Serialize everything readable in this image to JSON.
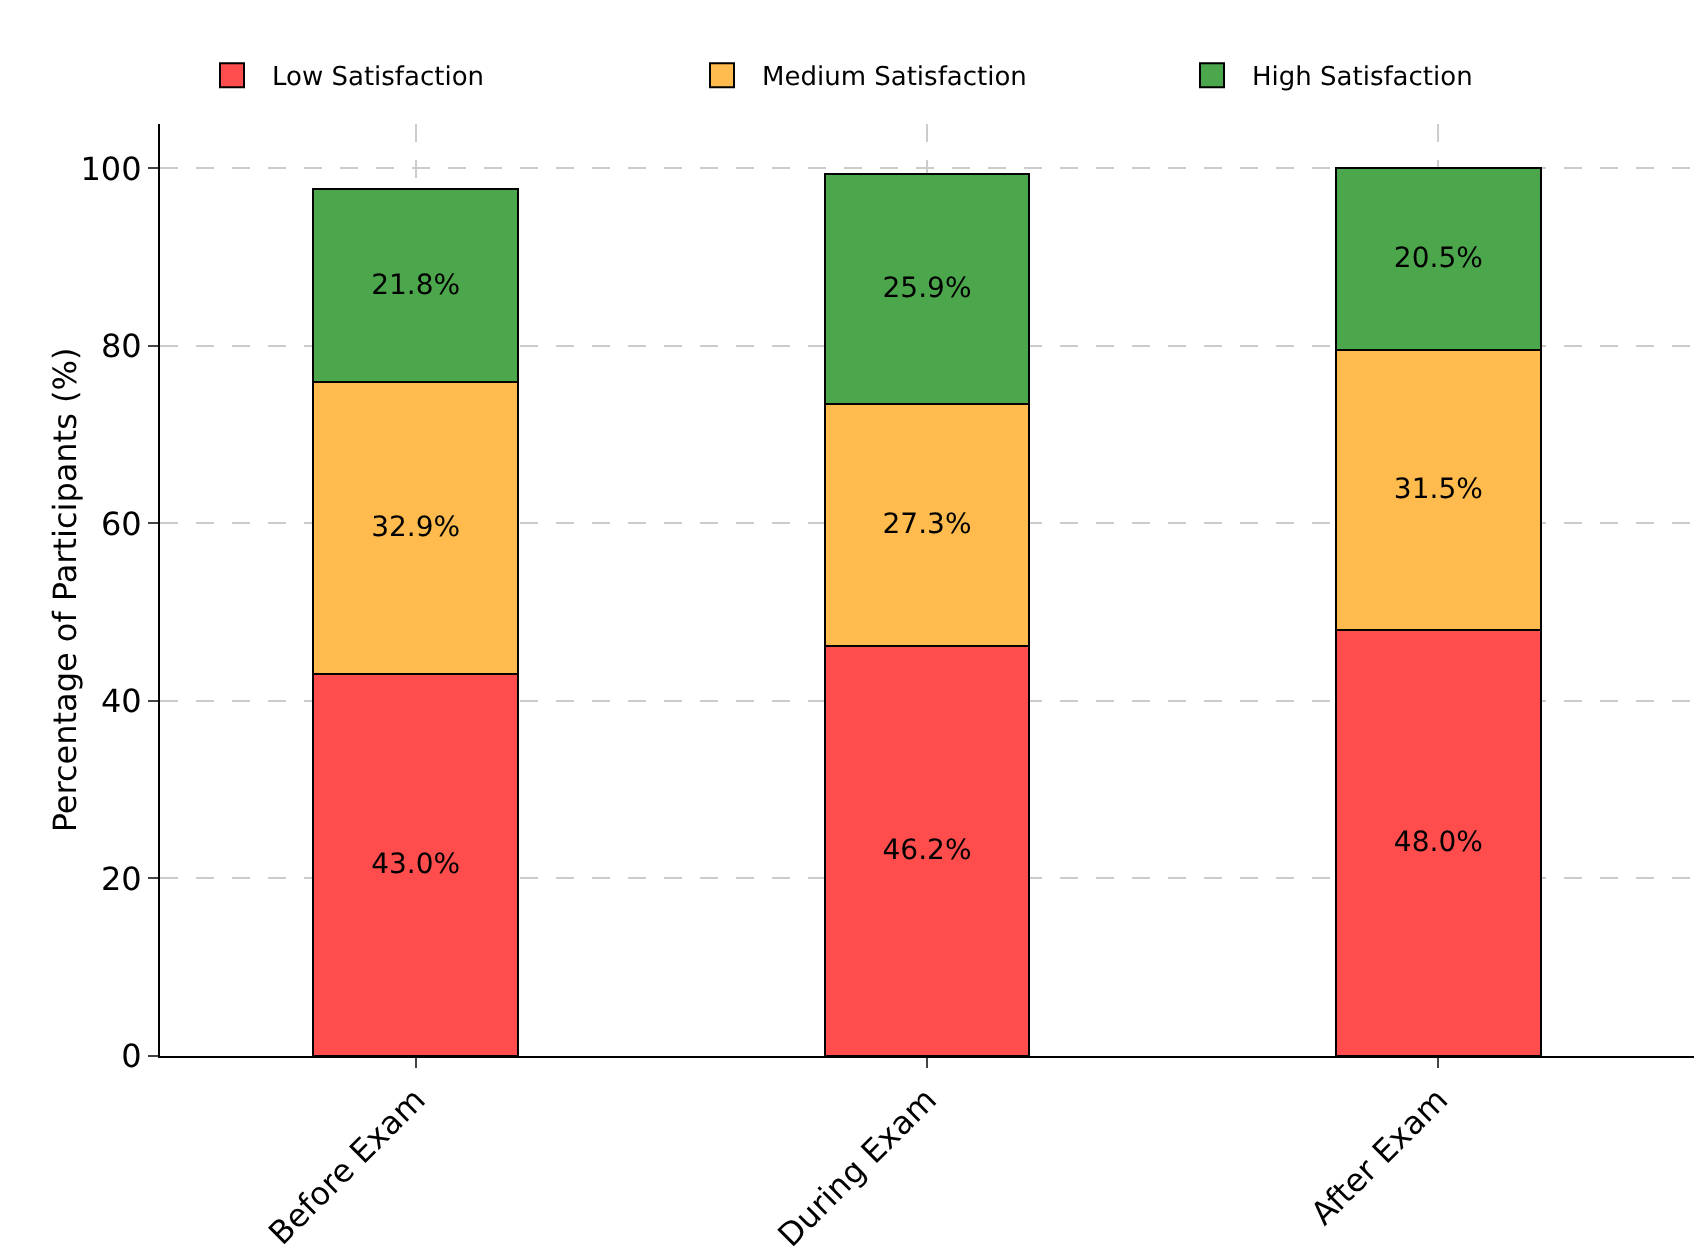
{
  "chart_data": {
    "type": "bar",
    "stacked": true,
    "ylabel": "Percentage of Participants (%)",
    "categories": [
      "Before Exam",
      "During Exam",
      "After Exam"
    ],
    "series": [
      {
        "name": "Low Satisfaction",
        "color": "#ff4d4d",
        "values": [
          43.0,
          46.2,
          48.0
        ],
        "value_labels": [
          "43.0%",
          "46.2%",
          "48.0%"
        ]
      },
      {
        "name": "Medium Satisfaction",
        "color": "#ffbb4d",
        "values": [
          32.9,
          27.3,
          31.5
        ],
        "value_labels": [
          "32.9%",
          "27.3%",
          "31.5%"
        ]
      },
      {
        "name": "High Satisfaction",
        "color": "#4ca64c",
        "values": [
          21.8,
          25.9,
          20.5
        ],
        "value_labels": [
          "21.8%",
          "25.9%",
          "20.5%"
        ]
      }
    ],
    "ylim": [
      0,
      105
    ],
    "yticks": [
      0,
      20,
      40,
      60,
      80,
      100
    ],
    "grid": true,
    "legend": "top"
  }
}
